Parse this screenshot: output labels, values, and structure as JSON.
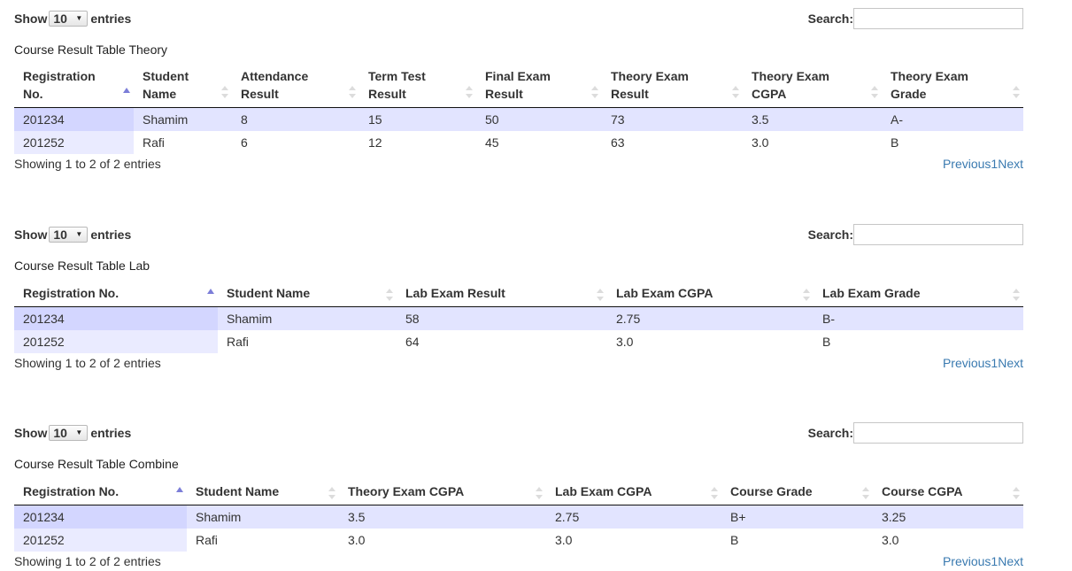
{
  "controls": {
    "show_label": "Show",
    "entries_label": "entries",
    "length_value": "10",
    "search_label": "Search:",
    "info": "Showing 1 to 2 of 2 entries",
    "previous": "Previous",
    "page": "1",
    "next": "Next"
  },
  "theory": {
    "caption": "Course Result Table Theory",
    "headers": [
      [
        "Registration",
        "No."
      ],
      [
        "Student",
        "Name"
      ],
      [
        "Attendance",
        "Result"
      ],
      [
        "Term Test",
        "Result"
      ],
      [
        "Final Exam",
        "Result"
      ],
      [
        "Theory Exam",
        "Result"
      ],
      [
        "Theory Exam",
        "CGPA"
      ],
      [
        "Theory Exam",
        "Grade"
      ]
    ],
    "rows": [
      [
        "201234",
        "Shamim",
        "8",
        "15",
        "50",
        "73",
        "3.5",
        "A-"
      ],
      [
        "201252",
        "Rafi",
        "6",
        "12",
        "45",
        "63",
        "3.0",
        "B"
      ]
    ]
  },
  "lab": {
    "caption": "Course Result Table Lab",
    "headers": [
      "Registration No.",
      "Student Name",
      "Lab Exam Result",
      "Lab Exam CGPA",
      "Lab Exam Grade"
    ],
    "rows": [
      [
        "201234",
        "Shamim",
        "58",
        "2.75",
        "B-"
      ],
      [
        "201252",
        "Rafi",
        "64",
        "3.0",
        "B"
      ]
    ]
  },
  "combine": {
    "caption": "Course Result Table Combine",
    "headers": [
      "Registration No.",
      "Student Name",
      "Theory Exam CGPA",
      "Lab Exam CGPA",
      "Course Grade",
      "Course CGPA"
    ],
    "rows": [
      [
        "201234",
        "Shamim",
        "3.5",
        "2.75",
        "B+",
        "3.25"
      ],
      [
        "201252",
        "Rafi",
        "3.0",
        "3.0",
        "B",
        "3.0"
      ]
    ]
  },
  "colors": {
    "row_odd": "#e2e4ff",
    "row_odd_sorted": "#d3d6ff",
    "row_even_sorted": "#eaebff",
    "link": "#3a7ab0",
    "sort_active": "#7c7ed8"
  }
}
